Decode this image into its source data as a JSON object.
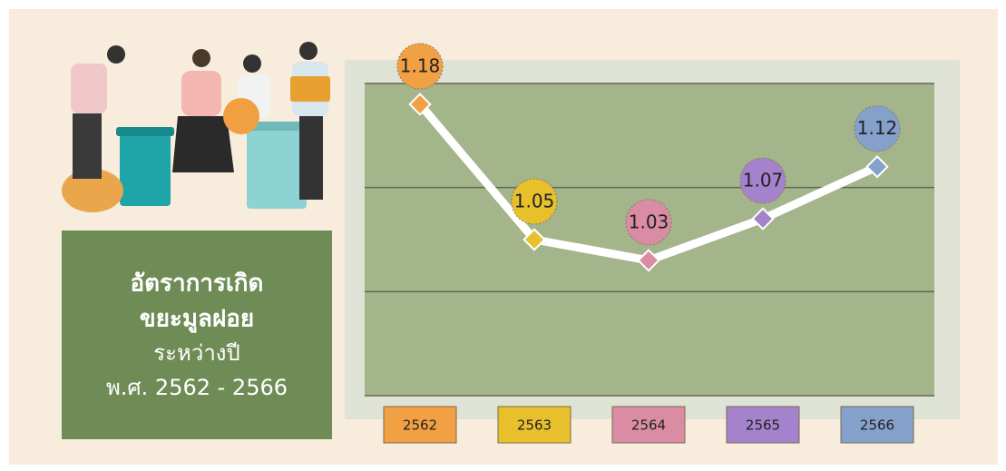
{
  "chart_data": {
    "type": "line",
    "title_lines": [
      "อัตราการเกิด",
      "ขยะมูลฝอย",
      "ระหว่างปี",
      "พ.ศ. 2562 - 2566"
    ],
    "categories": [
      "2562",
      "2563",
      "2564",
      "2565",
      "2566"
    ],
    "values": [
      1.18,
      1.05,
      1.03,
      1.07,
      1.12
    ],
    "colors": [
      "#f2a044",
      "#e8c02c",
      "#d98ca3",
      "#a482cc",
      "#86a0cc"
    ],
    "line_color": "#ffffff",
    "ylim": [
      0.9,
      1.2
    ],
    "yticks": [
      0.9,
      1.0,
      1.1,
      1.2
    ],
    "grid": true
  }
}
